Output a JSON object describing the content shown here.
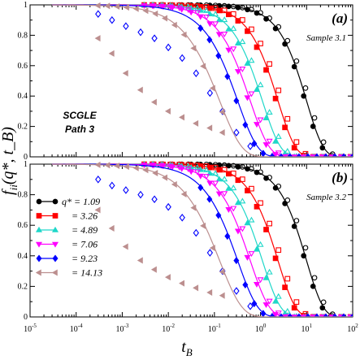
{
  "chart_data": {
    "type": "scatter",
    "xlabel": "t_B",
    "ylabel": "f_ii(q*, t_B)",
    "xscale": "log",
    "xlim": [
      1e-05,
      100
    ],
    "ylim": [
      0,
      1
    ],
    "x_ticks": [
      1e-05,
      0.0001,
      0.001,
      0.01,
      0.1,
      1,
      10,
      100
    ],
    "x_tick_labels": [
      {
        "base": "10",
        "exp": "-5"
      },
      {
        "base": "10",
        "exp": "-4"
      },
      {
        "base": "10",
        "exp": "-3"
      },
      {
        "base": "10",
        "exp": "-2"
      },
      {
        "base": "10",
        "exp": "-1"
      },
      {
        "base": "10",
        "exp": "0"
      },
      {
        "base": "10",
        "exp": "1"
      },
      {
        "base": "10",
        "exp": "2"
      }
    ],
    "y_ticks": [
      0,
      0.2,
      0.4,
      0.6,
      0.8,
      1
    ],
    "y_tick_labels": [
      "0",
      "0.2",
      "0.4",
      "0.6",
      "0.8",
      "1"
    ],
    "legend_position": "left-middle of lower panel",
    "legend_prefix": "q* =",
    "series": [
      {
        "name": "1.09",
        "color": "#000000",
        "marker": "circle",
        "line_tau": 10.0,
        "line_beta": 1.2,
        "filled_tau": 9.3,
        "open_tau": 11.5
      },
      {
        "name": "3.26",
        "color": "#ff0000",
        "marker": "square",
        "line_tau": 2.4,
        "line_beta": 1.15,
        "filled_tau": 2.2,
        "open_tau": 2.9
      },
      {
        "name": "4.89",
        "color": "#1fd7c9",
        "marker": "triangle-up",
        "line_tau": 1.1,
        "line_beta": 1.1,
        "filled_tau": 1.0,
        "open_tau": 1.3
      },
      {
        "name": "7.06",
        "color": "#ff00ff",
        "marker": "triangle-down",
        "line_tau": 0.6,
        "line_beta": 1.05,
        "filled_tau": 0.55,
        "open_tau": 0.72
      },
      {
        "name": "9.23",
        "color": "#0000ff",
        "marker": "diamond",
        "line_tau": 0.32,
        "line_beta": 1.0,
        "filled_tau": 0.3,
        "open_tau": 0.3
      },
      {
        "name": "14.13",
        "color": "#bc8f8f",
        "marker": "triangle-left",
        "line_tau": 0.13,
        "line_beta": 0.9,
        "filled_tau": 0.12,
        "open_tau": 0.12
      }
    ],
    "panels": [
      {
        "label": "(a)",
        "sample": "Sample 3.1",
        "annotation_lines": [
          "SCGLE",
          "Path 3"
        ],
        "diamond_points": {
          "t": [
            0.0003,
            0.0006,
            0.0012,
            0.0025,
            0.005,
            0.01,
            0.02,
            0.04,
            0.08,
            0.15,
            0.3,
            0.6
          ],
          "f": [
            0.94,
            0.9,
            0.86,
            0.82,
            0.78,
            0.72,
            0.65,
            0.55,
            0.42,
            0.3,
            0.16,
            0.07
          ]
        },
        "left_tri_points": {
          "t": [
            0.0003,
            0.0006,
            0.0012,
            0.0025,
            0.005,
            0.01,
            0.02,
            0.04,
            0.08,
            0.15
          ],
          "f": [
            0.78,
            0.68,
            0.55,
            0.44,
            0.36,
            0.3,
            0.26,
            0.22,
            0.19,
            0.16
          ]
        }
      },
      {
        "label": "(b)",
        "sample": "Sample 3.2",
        "annotation_lines": [],
        "diamond_points": {
          "t": [
            0.0003,
            0.0006,
            0.0012,
            0.0025,
            0.005,
            0.01,
            0.02,
            0.04,
            0.08,
            0.15,
            0.3,
            0.6
          ],
          "f": [
            0.9,
            0.86,
            0.83,
            0.8,
            0.77,
            0.72,
            0.65,
            0.55,
            0.42,
            0.3,
            0.17,
            0.07
          ]
        },
        "left_tri_points": {
          "t": [
            0.0003,
            0.0006,
            0.0012,
            0.0025,
            0.005,
            0.01,
            0.02,
            0.04,
            0.08,
            0.15
          ],
          "f": [
            0.7,
            0.58,
            0.46,
            0.37,
            0.31,
            0.26,
            0.22,
            0.19,
            0.16,
            0.14
          ]
        }
      }
    ]
  }
}
